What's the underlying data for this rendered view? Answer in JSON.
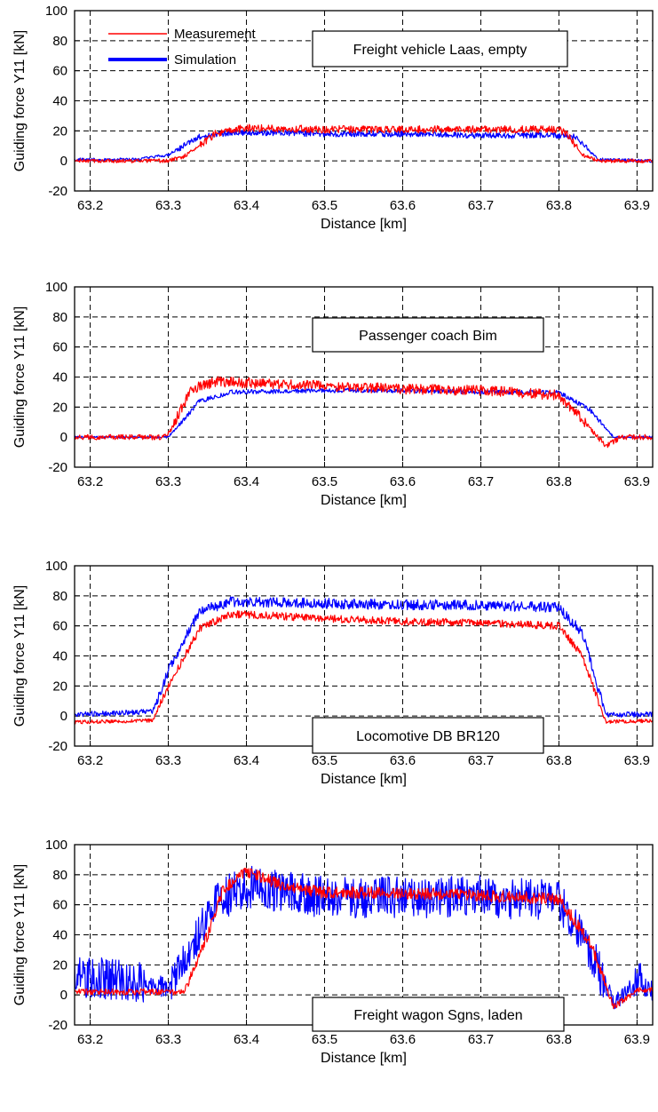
{
  "legend": [
    {
      "name": "Measurement",
      "color": "#ff0000"
    },
    {
      "name": "Simulation",
      "color": "#0000ff"
    }
  ],
  "chart_data": [
    {
      "type": "line",
      "annotation": "Freight vehicle Laas, empty",
      "xlabel": "Distance [km]",
      "ylabel": "Guiding force Y11  [kN]",
      "xlim": [
        63.18,
        63.92
      ],
      "ylim": [
        -20,
        100
      ],
      "xticks": [
        "63.2",
        "63.3",
        "63.4",
        "63.5",
        "63.6",
        "63.7",
        "63.8",
        "63.9"
      ],
      "yticks": [
        "100",
        "80",
        "60",
        "40",
        "20",
        "0",
        "-20"
      ],
      "grid": true,
      "legend_position": "top-left",
      "series": [
        {
          "name": "Measurement",
          "color": "#ff0000",
          "noise": 2.5,
          "x": [
            63.18,
            63.3,
            63.32,
            63.36,
            63.4,
            63.5,
            63.6,
            63.7,
            63.8,
            63.81,
            63.83,
            63.85,
            63.92
          ],
          "values": [
            0,
            0,
            3,
            18,
            22,
            21,
            21,
            21,
            21,
            18,
            4,
            0,
            0
          ]
        },
        {
          "name": "Simulation",
          "color": "#0000ff",
          "noise": 2.0,
          "x": [
            63.18,
            63.26,
            63.3,
            63.34,
            63.38,
            63.5,
            63.6,
            63.7,
            63.8,
            63.82,
            63.85,
            63.92
          ],
          "values": [
            1,
            1,
            4,
            16,
            19,
            18,
            18,
            17,
            17,
            16,
            1,
            0
          ]
        }
      ]
    },
    {
      "type": "line",
      "annotation": "Passenger coach Bim",
      "xlabel": "Distance [km]",
      "ylabel": "Guiding force Y11  [kN]",
      "xlim": [
        63.18,
        63.92
      ],
      "ylim": [
        -20,
        100
      ],
      "xticks": [
        "63.2",
        "63.3",
        "63.4",
        "63.5",
        "63.6",
        "63.7",
        "63.8",
        "63.9"
      ],
      "yticks": [
        "100",
        "80",
        "60",
        "40",
        "20",
        "0",
        "-20"
      ],
      "grid": true,
      "series": [
        {
          "name": "Measurement",
          "color": "#ff0000",
          "noise": 3.5,
          "x": [
            63.18,
            63.29,
            63.3,
            63.33,
            63.36,
            63.4,
            63.5,
            63.6,
            63.7,
            63.8,
            63.83,
            63.86,
            63.88,
            63.92
          ],
          "values": [
            0,
            0,
            2,
            32,
            37,
            36,
            34,
            32,
            31,
            28,
            12,
            -6,
            0,
            0
          ]
        },
        {
          "name": "Simulation",
          "color": "#0000ff",
          "noise": 1.5,
          "x": [
            63.18,
            63.3,
            63.34,
            63.38,
            63.5,
            63.6,
            63.7,
            63.8,
            63.84,
            63.87,
            63.92
          ],
          "values": [
            0,
            0,
            24,
            30,
            31,
            31,
            30,
            30,
            18,
            0,
            0
          ]
        }
      ]
    },
    {
      "type": "line",
      "annotation": "Locomotive DB BR120",
      "xlabel": "Distance [km]",
      "ylabel": "Guiding force Y11  [kN]",
      "xlim": [
        63.18,
        63.92
      ],
      "ylim": [
        -20,
        100
      ],
      "xticks": [
        "63.2",
        "63.3",
        "63.4",
        "63.5",
        "63.6",
        "63.7",
        "63.8",
        "63.9"
      ],
      "yticks": [
        "100",
        "80",
        "60",
        "40",
        "20",
        "0",
        "-20"
      ],
      "grid": true,
      "series": [
        {
          "name": "Measurement",
          "color": "#ff0000",
          "noise": 2.5,
          "x": [
            63.18,
            63.28,
            63.3,
            63.34,
            63.38,
            63.5,
            63.6,
            63.7,
            63.8,
            63.83,
            63.86,
            63.92
          ],
          "values": [
            -4,
            -3,
            20,
            58,
            68,
            65,
            63,
            62,
            60,
            40,
            -4,
            -3
          ]
        },
        {
          "name": "Simulation",
          "color": "#0000ff",
          "noise": 3.5,
          "x": [
            63.18,
            63.28,
            63.3,
            63.34,
            63.38,
            63.5,
            63.6,
            63.7,
            63.8,
            63.83,
            63.86,
            63.92
          ],
          "values": [
            1,
            3,
            30,
            70,
            76,
            75,
            74,
            74,
            72,
            55,
            1,
            1
          ]
        }
      ]
    },
    {
      "type": "line",
      "annotation": "Freight wagon Sgns, laden",
      "xlabel": "Distance [km]",
      "ylabel": "Guiding force Y11  [kN]",
      "xlim": [
        63.18,
        63.92
      ],
      "ylim": [
        -20,
        100
      ],
      "xticks": [
        "63.2",
        "63.3",
        "63.4",
        "63.5",
        "63.6",
        "63.7",
        "63.8",
        "63.9"
      ],
      "yticks": [
        "100",
        "80",
        "60",
        "40",
        "20",
        "0",
        "-20"
      ],
      "grid": true,
      "series": [
        {
          "name": "Measurement",
          "color": "#ff0000",
          "noise": 4,
          "x": [
            63.18,
            63.32,
            63.34,
            63.37,
            63.4,
            63.45,
            63.5,
            63.6,
            63.7,
            63.8,
            63.84,
            63.87,
            63.9,
            63.92
          ],
          "values": [
            2,
            2,
            25,
            70,
            82,
            72,
            68,
            68,
            66,
            64,
            35,
            -8,
            3,
            3
          ]
        },
        {
          "name": "Simulation",
          "color": "#0000ff",
          "noise": 14,
          "x": [
            63.18,
            63.25,
            63.3,
            63.33,
            63.36,
            63.4,
            63.5,
            63.6,
            63.7,
            63.8,
            63.83,
            63.87,
            63.9,
            63.92
          ],
          "values": [
            12,
            10,
            5,
            30,
            62,
            72,
            65,
            65,
            66,
            62,
            40,
            -5,
            10,
            2
          ]
        }
      ]
    }
  ]
}
